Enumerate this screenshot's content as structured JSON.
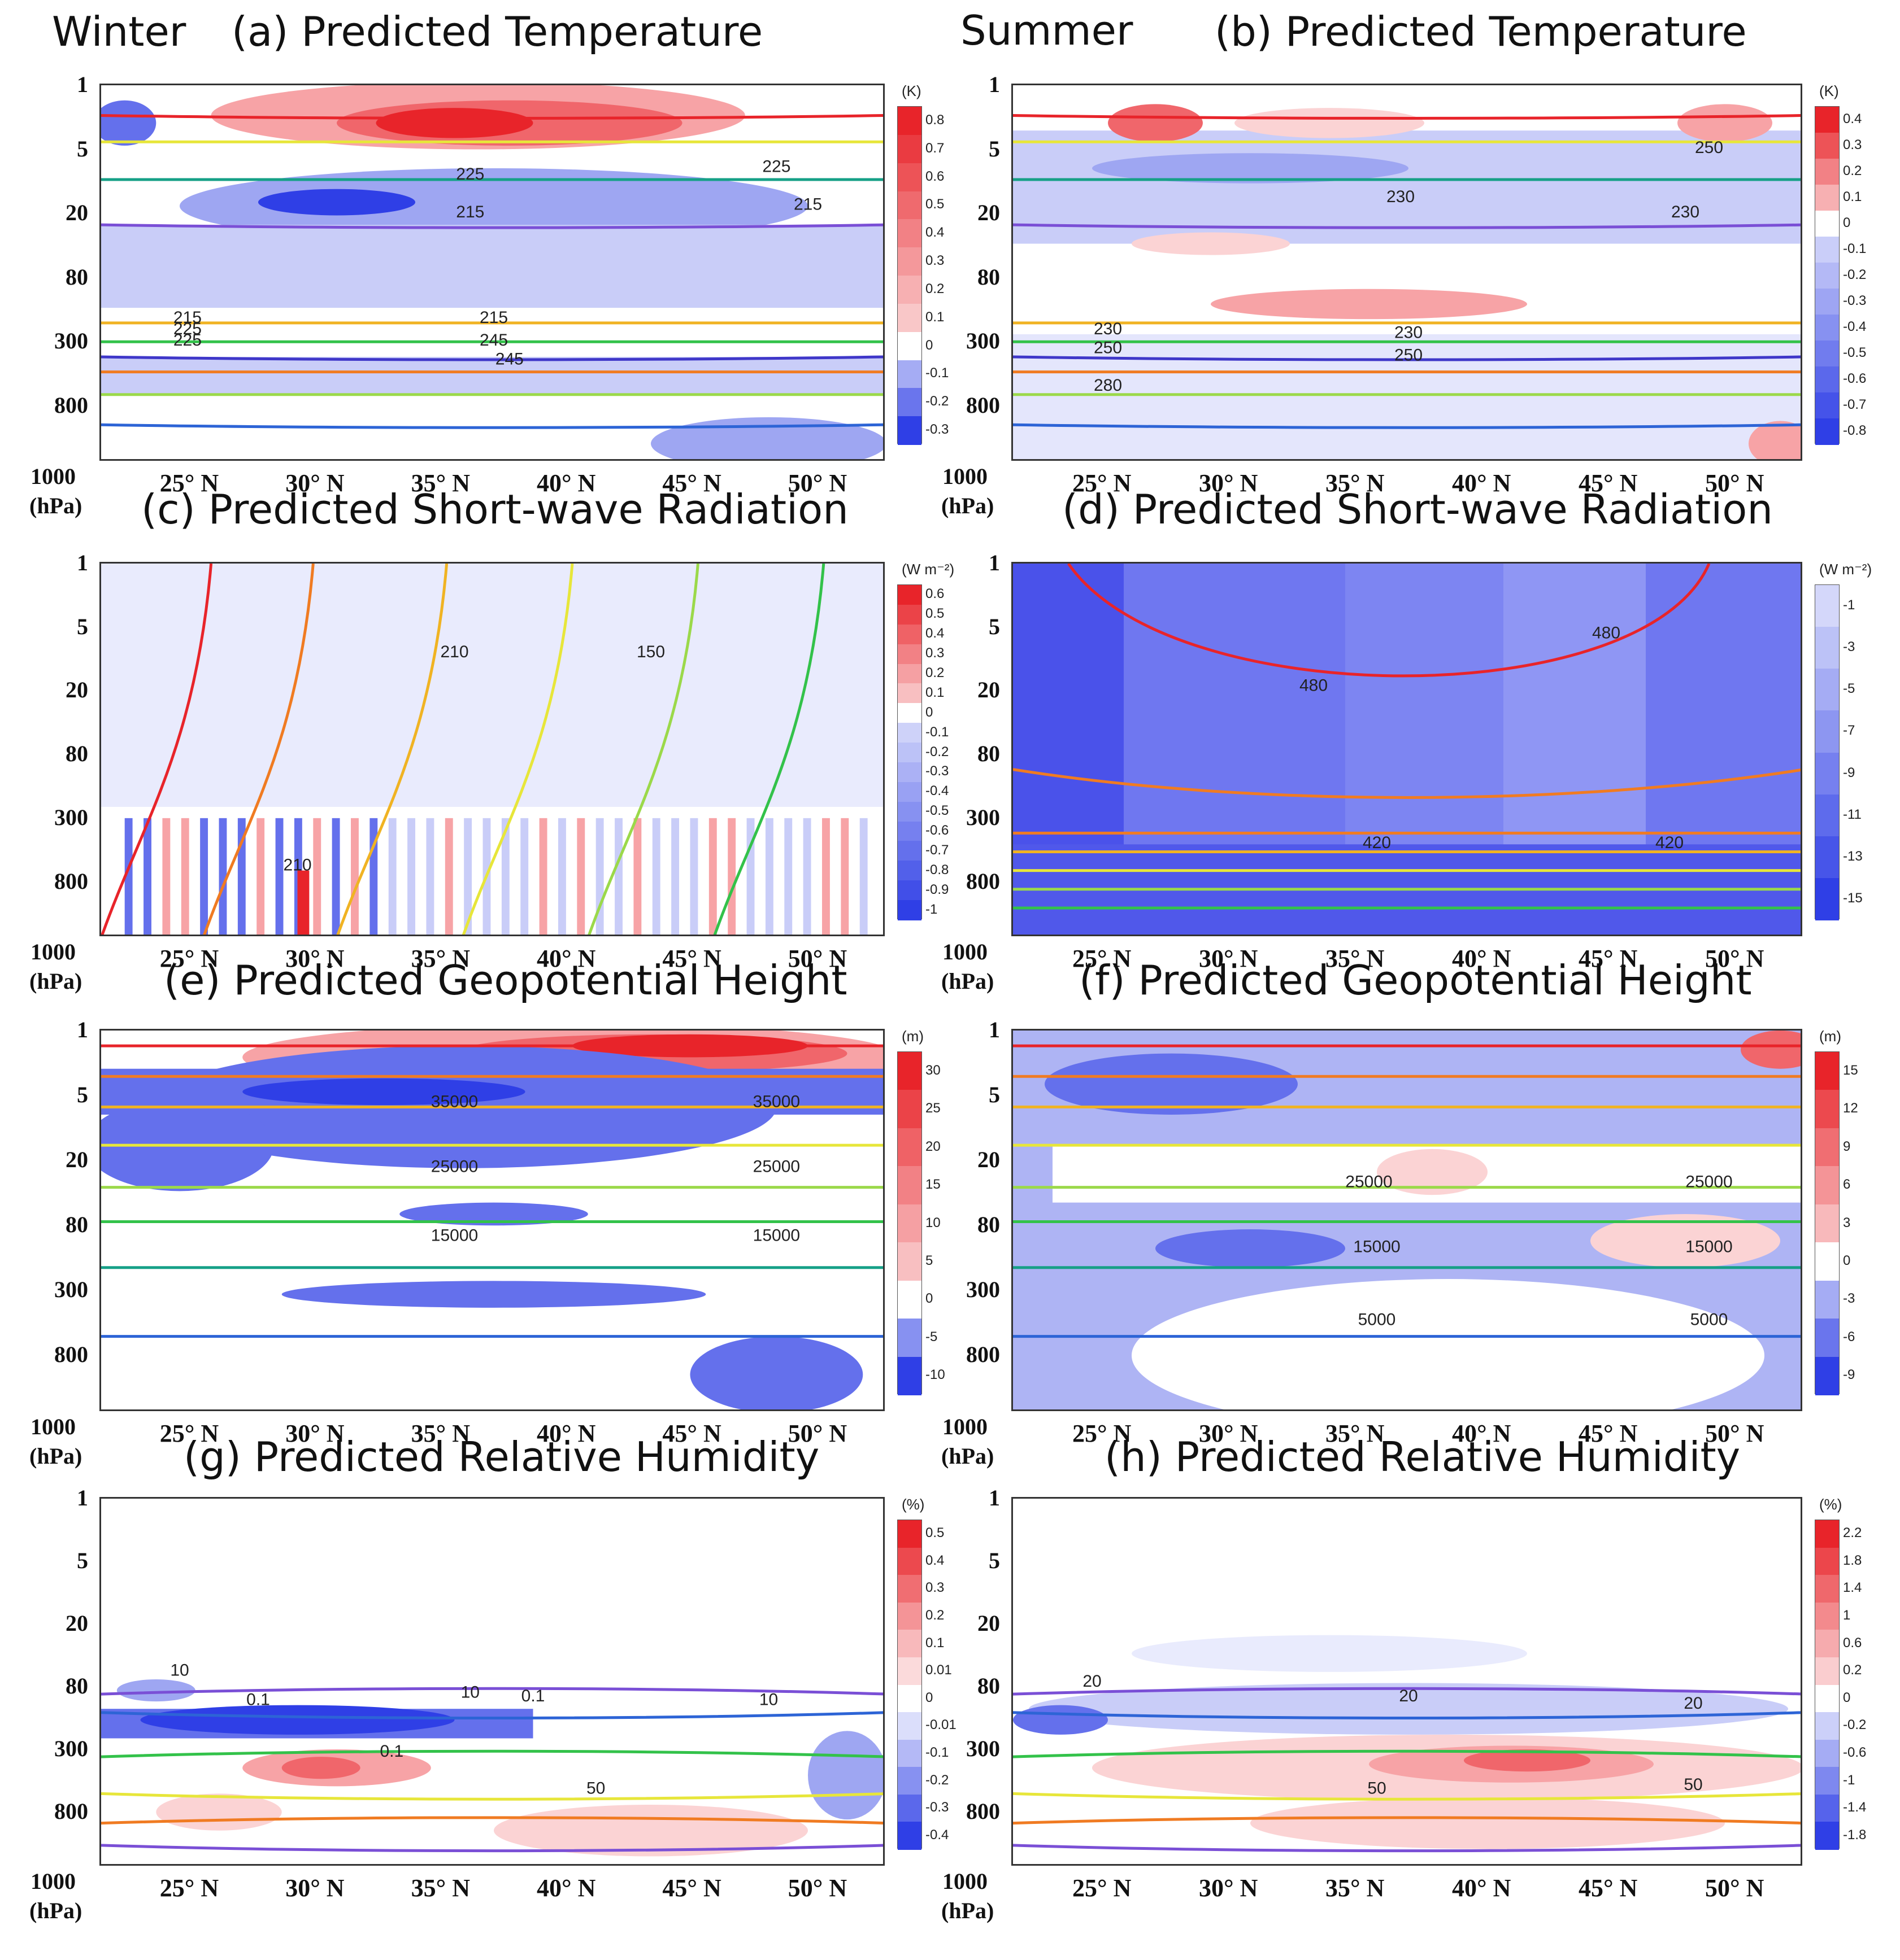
{
  "seasons": {
    "winter": "Winter",
    "summer": "Summer"
  },
  "x_ticks": [
    "25°  N",
    "30°  N",
    "35°  N",
    "40°  N",
    "45°  N",
    "50°  N"
  ],
  "y_ticks": [
    "1",
    "5",
    "20",
    "80",
    "300",
    "800"
  ],
  "y_bottom": "1000",
  "y_unit": "(hPa)",
  "colors": {
    "warm": "#e8242a",
    "cool": "#2f3fe6",
    "light_red": "#f9b9bb",
    "light_blue": "#b9bff6"
  },
  "chart_data": [
    {
      "id": "a",
      "type": "heatmap",
      "title": "(a) Predicted Temperature",
      "season": "Winter",
      "variable": "Temperature",
      "unit": "(K)",
      "colorbar": [
        "0.8",
        "0.7",
        "0.6",
        "0.5",
        "0.4",
        "0.3",
        "0.2",
        "0.1",
        "0",
        "-0.1",
        "-0.2",
        "-0.3"
      ],
      "contour_labels": [
        "225",
        "215",
        "215",
        "225",
        "215",
        "215",
        "225",
        "245",
        "225",
        "245"
      ]
    },
    {
      "id": "b",
      "type": "heatmap",
      "title": "(b) Predicted Temperature",
      "season": "Summer",
      "variable": "Temperature",
      "unit": "(K)",
      "colorbar": [
        "0.4",
        "0.3",
        "0.2",
        "0.1",
        "0",
        "-0.1",
        "-0.2",
        "-0.3",
        "-0.4",
        "-0.5",
        "-0.6",
        "-0.7",
        "-0.8"
      ],
      "contour_labels": [
        "250",
        "230",
        "230",
        "230",
        "230",
        "250",
        "250",
        "280"
      ]
    },
    {
      "id": "c",
      "type": "heatmap",
      "title": "(c) Predicted Short-wave Radiation",
      "season": "Winter",
      "variable": "Short-wave Radiation",
      "unit": "(W m⁻²)",
      "colorbar": [
        "0.6",
        "0.5",
        "0.4",
        "0.3",
        "0.2",
        "0.1",
        "0",
        "-0.1",
        "-0.2",
        "-0.3",
        "-0.4",
        "-0.5",
        "-0.6",
        "-0.7",
        "-0.8",
        "-0.9",
        "-1"
      ],
      "contour_labels": [
        "210",
        "150",
        "210"
      ]
    },
    {
      "id": "d",
      "type": "heatmap",
      "title": "(d) Predicted Short-wave Radiation",
      "season": "Summer",
      "variable": "Short-wave Radiation",
      "unit": "(W m⁻²)",
      "colorbar": [
        "-1",
        "-3",
        "-5",
        "-7",
        "-9",
        "-11",
        "-13",
        "-15"
      ],
      "contour_labels": [
        "480",
        "480",
        "420",
        "420"
      ]
    },
    {
      "id": "e",
      "type": "heatmap",
      "title": "(e) Predicted Geopotential Height",
      "season": "Winter",
      "variable": "Geopotential Height",
      "unit": "(m)",
      "colorbar": [
        "30",
        "25",
        "20",
        "15",
        "10",
        "5",
        "0",
        "-5",
        "-10"
      ],
      "contour_labels": [
        "35000",
        "35000",
        "25000",
        "25000",
        "15000",
        "15000"
      ]
    },
    {
      "id": "f",
      "type": "heatmap",
      "title": "(f) Predicted Geopotential Height",
      "season": "Summer",
      "variable": "Geopotential Height",
      "unit": "(m)",
      "colorbar": [
        "15",
        "12",
        "9",
        "6",
        "3",
        "0",
        "-3",
        "-6",
        "-9"
      ],
      "contour_labels": [
        "25000",
        "25000",
        "15000",
        "15000",
        "5000",
        "5000"
      ]
    },
    {
      "id": "g",
      "type": "heatmap",
      "title": "(g) Predicted Relative Humidity",
      "season": "Winter",
      "variable": "Relative Humidity",
      "unit": "(%)",
      "colorbar": [
        "0.5",
        "0.4",
        "0.3",
        "0.2",
        "0.1",
        "0.01",
        "0",
        "-0.01",
        "-0.1",
        "-0.2",
        "-0.3",
        "-0.4"
      ],
      "contour_labels": [
        "10",
        "10",
        "0.1",
        "10",
        "0.1",
        "0.1",
        "50"
      ]
    },
    {
      "id": "h",
      "type": "heatmap",
      "title": "(h) Predicted Relative Humidity",
      "season": "Summer",
      "variable": "Relative Humidity",
      "unit": "(%)",
      "colorbar": [
        "2.2",
        "1.8",
        "1.4",
        "1",
        "0.6",
        "0.2",
        "0",
        "-0.2",
        "-0.6",
        "-1",
        "-1.4",
        "-1.8"
      ],
      "contour_labels": [
        "20",
        "20",
        "20",
        "50",
        "50"
      ]
    }
  ]
}
